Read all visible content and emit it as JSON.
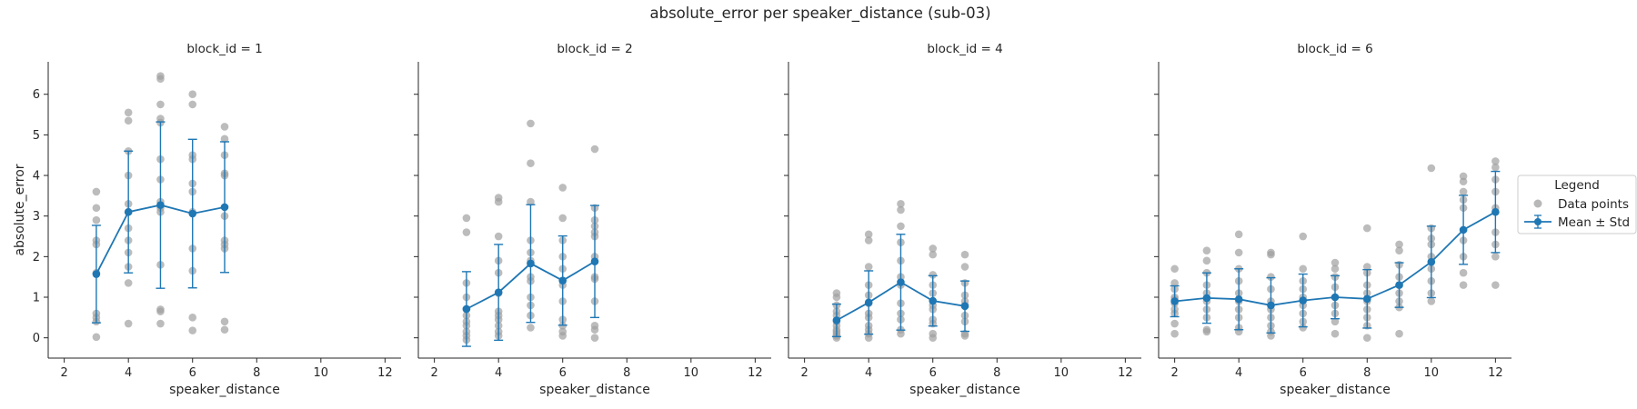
{
  "title": "absolute_error per speaker_distance (sub-03)",
  "legend": {
    "title": "Legend",
    "items": [
      {
        "label": "Data points",
        "color": "#a0a0a0"
      },
      {
        "label": "Mean ± Std",
        "color": "#1f77b4"
      }
    ],
    "placement": "right-outside"
  },
  "colors": {
    "points": "#a0a0a0",
    "mean": "#1f77b4",
    "axis": "#262626"
  },
  "chart_data": [
    {
      "type": "scatter",
      "panel_title": "block_id = 1",
      "xlabel": "speaker_distance",
      "ylabel": "absolute_error",
      "xlim": [
        1.5,
        12.5
      ],
      "ylim": [
        -0.5,
        6.8
      ],
      "xticks": [
        "2",
        "4",
        "6",
        "8",
        "10",
        "12"
      ],
      "yticks": [
        "0",
        "1",
        "2",
        "3",
        "4",
        "5",
        "6"
      ],
      "grid": false,
      "points": [
        [
          3,
          3.6
        ],
        [
          3,
          3.2
        ],
        [
          3,
          2.9
        ],
        [
          3,
          2.4
        ],
        [
          3,
          2.3
        ],
        [
          3,
          1.6
        ],
        [
          3,
          0.6
        ],
        [
          3,
          0.5
        ],
        [
          3,
          0.4
        ],
        [
          3,
          0.02
        ],
        [
          4,
          5.55
        ],
        [
          4,
          5.35
        ],
        [
          4,
          4.6
        ],
        [
          4,
          4.0
        ],
        [
          4,
          3.3
        ],
        [
          4,
          3.1
        ],
        [
          4,
          2.7
        ],
        [
          4,
          2.4
        ],
        [
          4,
          2.1
        ],
        [
          4,
          1.75
        ],
        [
          4,
          1.35
        ],
        [
          4,
          0.35
        ],
        [
          5,
          6.45
        ],
        [
          5,
          6.38
        ],
        [
          5,
          5.75
        ],
        [
          5,
          5.4
        ],
        [
          5,
          5.3
        ],
        [
          5,
          4.4
        ],
        [
          5,
          3.9
        ],
        [
          5,
          3.35
        ],
        [
          5,
          3.2
        ],
        [
          5,
          3.1
        ],
        [
          5,
          1.8
        ],
        [
          5,
          0.7
        ],
        [
          5,
          0.65
        ],
        [
          5,
          0.35
        ],
        [
          6,
          6.0
        ],
        [
          6,
          5.75
        ],
        [
          6,
          4.5
        ],
        [
          6,
          4.4
        ],
        [
          6,
          3.8
        ],
        [
          6,
          3.6
        ],
        [
          6,
          3.1
        ],
        [
          6,
          2.2
        ],
        [
          6,
          1.65
        ],
        [
          6,
          0.5
        ],
        [
          6,
          0.18
        ],
        [
          7,
          5.2
        ],
        [
          7,
          4.9
        ],
        [
          7,
          4.5
        ],
        [
          7,
          4.05
        ],
        [
          7,
          4.0
        ],
        [
          7,
          3.0
        ],
        [
          7,
          2.4
        ],
        [
          7,
          2.3
        ],
        [
          7,
          2.2
        ],
        [
          7,
          0.4
        ],
        [
          7,
          0.2
        ]
      ],
      "mean": [
        [
          3,
          1.57
        ],
        [
          4,
          3.1
        ],
        [
          5,
          3.27
        ],
        [
          6,
          3.06
        ],
        [
          7,
          3.22
        ]
      ],
      "std": [
        1.2,
        1.5,
        2.05,
        1.83,
        1.61
      ]
    },
    {
      "type": "scatter",
      "panel_title": "block_id = 2",
      "xlabel": "speaker_distance",
      "ylabel": "",
      "xlim": [
        1.5,
        12.5
      ],
      "ylim": [
        -0.5,
        6.8
      ],
      "xticks": [
        "2",
        "4",
        "6",
        "8",
        "10",
        "12"
      ],
      "yticks": [
        "0",
        "1",
        "2",
        "3",
        "4",
        "5",
        "6"
      ],
      "grid": false,
      "points": [
        [
          3,
          2.95
        ],
        [
          3,
          2.6
        ],
        [
          3,
          1.35
        ],
        [
          3,
          1.0
        ],
        [
          3,
          0.7
        ],
        [
          3,
          0.55
        ],
        [
          3,
          0.4
        ],
        [
          3,
          0.3
        ],
        [
          3,
          0.15
        ],
        [
          3,
          0.05
        ],
        [
          3,
          -0.05
        ],
        [
          4,
          3.45
        ],
        [
          4,
          3.35
        ],
        [
          4,
          2.5
        ],
        [
          4,
          1.9
        ],
        [
          4,
          1.6
        ],
        [
          4,
          1.1
        ],
        [
          4,
          0.65
        ],
        [
          4,
          0.55
        ],
        [
          4,
          0.45
        ],
        [
          4,
          0.3
        ],
        [
          4,
          0.15
        ],
        [
          4,
          0.05
        ],
        [
          5,
          5.28
        ],
        [
          5,
          4.3
        ],
        [
          5,
          3.35
        ],
        [
          5,
          2.4
        ],
        [
          5,
          2.1
        ],
        [
          5,
          1.9
        ],
        [
          5,
          1.5
        ],
        [
          5,
          1.4
        ],
        [
          5,
          1.0
        ],
        [
          5,
          0.8
        ],
        [
          5,
          0.55
        ],
        [
          5,
          0.25
        ],
        [
          6,
          3.7
        ],
        [
          6,
          2.95
        ],
        [
          6,
          2.4
        ],
        [
          6,
          2.0
        ],
        [
          6,
          1.7
        ],
        [
          6,
          1.3
        ],
        [
          6,
          0.9
        ],
        [
          6,
          0.45
        ],
        [
          6,
          0.3
        ],
        [
          6,
          0.15
        ],
        [
          6,
          0.05
        ],
        [
          7,
          4.65
        ],
        [
          7,
          3.2
        ],
        [
          7,
          2.9
        ],
        [
          7,
          2.75
        ],
        [
          7,
          2.6
        ],
        [
          7,
          2.5
        ],
        [
          7,
          2.0
        ],
        [
          7,
          1.5
        ],
        [
          7,
          1.45
        ],
        [
          7,
          0.9
        ],
        [
          7,
          0.3
        ],
        [
          7,
          0.2
        ],
        [
          7,
          0.0
        ]
      ],
      "mean": [
        [
          3,
          0.71
        ],
        [
          4,
          1.12
        ],
        [
          5,
          1.83
        ],
        [
          6,
          1.41
        ],
        [
          7,
          1.88
        ]
      ],
      "std": [
        0.92,
        1.18,
        1.45,
        1.1,
        1.38
      ]
    },
    {
      "type": "scatter",
      "panel_title": "block_id = 4",
      "xlabel": "speaker_distance",
      "ylabel": "",
      "xlim": [
        1.5,
        12.5
      ],
      "ylim": [
        -0.5,
        6.8
      ],
      "xticks": [
        "2",
        "4",
        "6",
        "8",
        "10",
        "12"
      ],
      "yticks": [
        "0",
        "1",
        "2",
        "3",
        "4",
        "5",
        "6"
      ],
      "grid": false,
      "points": [
        [
          3,
          1.1
        ],
        [
          3,
          1.0
        ],
        [
          3,
          0.8
        ],
        [
          3,
          0.65
        ],
        [
          3,
          0.55
        ],
        [
          3,
          0.4
        ],
        [
          3,
          0.3
        ],
        [
          3,
          0.2
        ],
        [
          3,
          0.15
        ],
        [
          3,
          0.1
        ],
        [
          3,
          0.05
        ],
        [
          3,
          0.0
        ],
        [
          4,
          2.55
        ],
        [
          4,
          2.4
        ],
        [
          4,
          1.75
        ],
        [
          4,
          1.3
        ],
        [
          4,
          1.05
        ],
        [
          4,
          0.85
        ],
        [
          4,
          0.6
        ],
        [
          4,
          0.5
        ],
        [
          4,
          0.3
        ],
        [
          4,
          0.2
        ],
        [
          4,
          0.1
        ],
        [
          4,
          0.0
        ],
        [
          5,
          3.3
        ],
        [
          5,
          3.15
        ],
        [
          5,
          2.75
        ],
        [
          5,
          2.35
        ],
        [
          5,
          1.9
        ],
        [
          5,
          1.5
        ],
        [
          5,
          1.3
        ],
        [
          5,
          0.85
        ],
        [
          5,
          0.6
        ],
        [
          5,
          0.45
        ],
        [
          5,
          0.2
        ],
        [
          5,
          0.1
        ],
        [
          6,
          2.2
        ],
        [
          6,
          2.05
        ],
        [
          6,
          1.55
        ],
        [
          6,
          1.3
        ],
        [
          6,
          1.1
        ],
        [
          6,
          0.8
        ],
        [
          6,
          0.7
        ],
        [
          6,
          0.45
        ],
        [
          6,
          0.35
        ],
        [
          6,
          0.1
        ],
        [
          6,
          0.0
        ],
        [
          7,
          2.05
        ],
        [
          7,
          1.75
        ],
        [
          7,
          1.35
        ],
        [
          7,
          1.05
        ],
        [
          7,
          0.9
        ],
        [
          7,
          0.8
        ],
        [
          7,
          0.55
        ],
        [
          7,
          0.4
        ],
        [
          7,
          0.1
        ],
        [
          7,
          0.05
        ]
      ],
      "mean": [
        [
          3,
          0.43
        ],
        [
          4,
          0.87
        ],
        [
          5,
          1.37
        ],
        [
          6,
          0.91
        ],
        [
          7,
          0.78
        ]
      ],
      "std": [
        0.4,
        0.78,
        1.18,
        0.62,
        0.62
      ]
    },
    {
      "type": "scatter",
      "panel_title": "block_id = 6",
      "xlabel": "speaker_distance",
      "ylabel": "",
      "xlim": [
        1.5,
        12.5
      ],
      "ylim": [
        -0.5,
        6.8
      ],
      "xticks": [
        "2",
        "4",
        "6",
        "8",
        "10",
        "12"
      ],
      "yticks": [
        "0",
        "1",
        "2",
        "3",
        "4",
        "5",
        "6"
      ],
      "grid": false,
      "points": [
        [
          2,
          1.7
        ],
        [
          2,
          1.35
        ],
        [
          2,
          1.2
        ],
        [
          2,
          1.0
        ],
        [
          2,
          0.95
        ],
        [
          2,
          0.85
        ],
        [
          2,
          0.7
        ],
        [
          2,
          0.6
        ],
        [
          2,
          0.35
        ],
        [
          2,
          0.1
        ],
        [
          3,
          2.15
        ],
        [
          3,
          1.9
        ],
        [
          3,
          1.6
        ],
        [
          3,
          1.3
        ],
        [
          3,
          1.1
        ],
        [
          3,
          0.9
        ],
        [
          3,
          0.7
        ],
        [
          3,
          0.5
        ],
        [
          3,
          0.2
        ],
        [
          3,
          0.15
        ],
        [
          4,
          2.55
        ],
        [
          4,
          2.1
        ],
        [
          4,
          1.7
        ],
        [
          4,
          1.4
        ],
        [
          4,
          1.1
        ],
        [
          4,
          0.9
        ],
        [
          4,
          0.7
        ],
        [
          4,
          0.5
        ],
        [
          4,
          0.25
        ],
        [
          4,
          0.15
        ],
        [
          5,
          2.1
        ],
        [
          5,
          2.05
        ],
        [
          5,
          1.5
        ],
        [
          5,
          1.2
        ],
        [
          5,
          0.9
        ],
        [
          5,
          0.7
        ],
        [
          5,
          0.5
        ],
        [
          5,
          0.3
        ],
        [
          5,
          0.15
        ],
        [
          5,
          0.05
        ],
        [
          6,
          2.5
        ],
        [
          6,
          1.7
        ],
        [
          6,
          1.4
        ],
        [
          6,
          1.2
        ],
        [
          6,
          1.0
        ],
        [
          6,
          0.8
        ],
        [
          6,
          0.6
        ],
        [
          6,
          0.4
        ],
        [
          6,
          0.25
        ],
        [
          7,
          1.85
        ],
        [
          7,
          1.7
        ],
        [
          7,
          1.5
        ],
        [
          7,
          1.25
        ],
        [
          7,
          1.0
        ],
        [
          7,
          0.8
        ],
        [
          7,
          0.6
        ],
        [
          7,
          0.4
        ],
        [
          7,
          0.1
        ],
        [
          8,
          2.7
        ],
        [
          8,
          1.75
        ],
        [
          8,
          1.6
        ],
        [
          8,
          1.3
        ],
        [
          8,
          1.1
        ],
        [
          8,
          0.9
        ],
        [
          8,
          0.7
        ],
        [
          8,
          0.5
        ],
        [
          8,
          0.3
        ],
        [
          8,
          0.0
        ],
        [
          9,
          2.3
        ],
        [
          9,
          2.15
        ],
        [
          9,
          1.8
        ],
        [
          9,
          1.5
        ],
        [
          9,
          1.3
        ],
        [
          9,
          1.1
        ],
        [
          9,
          0.9
        ],
        [
          9,
          0.75
        ],
        [
          9,
          0.1
        ],
        [
          10,
          4.18
        ],
        [
          10,
          2.7
        ],
        [
          10,
          2.45
        ],
        [
          10,
          2.3
        ],
        [
          10,
          2.0
        ],
        [
          10,
          1.7
        ],
        [
          10,
          1.4
        ],
        [
          10,
          1.1
        ],
        [
          10,
          0.9
        ],
        [
          11,
          3.98
        ],
        [
          11,
          3.85
        ],
        [
          11,
          3.6
        ],
        [
          11,
          3.4
        ],
        [
          11,
          3.2
        ],
        [
          11,
          2.4
        ],
        [
          11,
          2.0
        ],
        [
          11,
          1.6
        ],
        [
          11,
          1.3
        ],
        [
          12,
          4.35
        ],
        [
          12,
          4.2
        ],
        [
          12,
          3.9
        ],
        [
          12,
          3.6
        ],
        [
          12,
          3.2
        ],
        [
          12,
          2.6
        ],
        [
          12,
          2.3
        ],
        [
          12,
          2.0
        ],
        [
          12,
          1.3
        ]
      ],
      "mean": [
        [
          2,
          0.9
        ],
        [
          3,
          0.98
        ],
        [
          4,
          0.95
        ],
        [
          5,
          0.8
        ],
        [
          6,
          0.92
        ],
        [
          7,
          1.0
        ],
        [
          8,
          0.96
        ],
        [
          9,
          1.3
        ],
        [
          10,
          1.87
        ],
        [
          11,
          2.66
        ],
        [
          12,
          3.1
        ]
      ],
      "std": [
        0.38,
        0.62,
        0.75,
        0.68,
        0.65,
        0.53,
        0.72,
        0.55,
        0.88,
        0.85,
        1.0
      ]
    }
  ]
}
